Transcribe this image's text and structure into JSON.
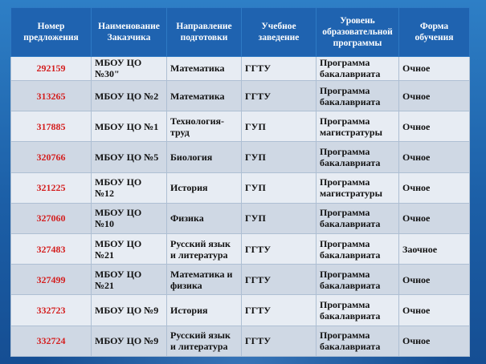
{
  "headers": [
    "Номер предложения",
    "Наименование Заказчика",
    "Направление подготовки",
    "Учебное заведение",
    "Уровень образовательной программы",
    "Форма обучения"
  ],
  "rows": [
    [
      "292159",
      "МБОУ ЦО №30\"",
      "Математика",
      "ГГТУ",
      "Программа бакалавриата",
      "Очное"
    ],
    [
      "313265",
      "МБОУ ЦО №2",
      "Математика",
      "ГГТУ",
      "Программа бакалавриата",
      "Очное"
    ],
    [
      "317885",
      "МБОУ ЦО №1",
      "Технология-труд",
      "ГУП",
      "Программа магистратуры",
      "Очное"
    ],
    [
      "320766",
      "МБОУ ЦО №5",
      "Биология",
      "ГУП",
      "Программа бакалавриата",
      "Очное"
    ],
    [
      "321225",
      "МБОУ ЦО №12",
      "История",
      "ГУП",
      "Программа магистратуры",
      "Очное"
    ],
    [
      "327060",
      "МБОУ ЦО №10",
      "Физика",
      "ГУП",
      "Программа бакалавриата",
      "Очное"
    ],
    [
      "327483",
      "МБОУ ЦО №21",
      "Русский язык и литература",
      "ГГТУ",
      "Программа бакалавриата",
      "Заочное"
    ],
    [
      "327499",
      "МБОУ ЦО №21",
      "Математика и физика",
      "ГГТУ",
      "Программа бакалавриата",
      "Очное"
    ],
    [
      "332723",
      "МБОУ ЦО №9",
      "История",
      "ГГТУ",
      "Программа бакалавриата",
      "Очное"
    ],
    [
      "332724",
      "МБОУ ЦО №9",
      "Русский язык и литература",
      "ГГТУ",
      "Программа бакалавриата",
      "Очное"
    ]
  ],
  "colors": {
    "background": "#1c5fa7",
    "header": "#1f63b0",
    "row_light": "#e7ecf3",
    "row_dark": "#cfd8e4",
    "offer_number": "#d42020"
  }
}
